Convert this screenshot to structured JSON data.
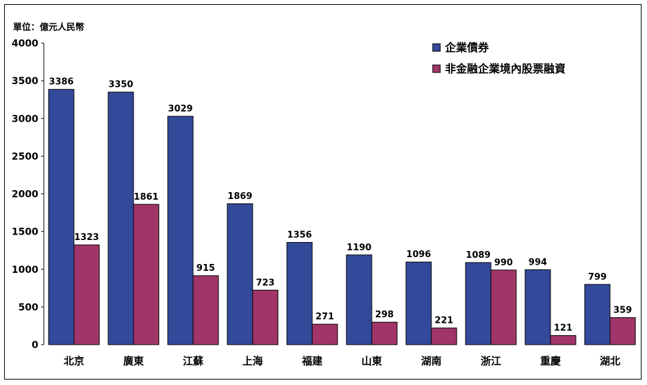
{
  "unit_label": "單位：億元人民幣",
  "chart_data": {
    "type": "bar",
    "categories": [
      "北京",
      "廣東",
      "江蘇",
      "上海",
      "福建",
      "山東",
      "湖南",
      "浙江",
      "重慶",
      "湖北"
    ],
    "series": [
      {
        "name": "企業債券",
        "color": "#334A9B",
        "values": [
          3386,
          3350,
          3029,
          1869,
          1356,
          1190,
          1096,
          1089,
          994,
          799
        ]
      },
      {
        "name": "非金融企業境內股票融資",
        "color": "#A13569",
        "values": [
          1323,
          1861,
          915,
          723,
          271,
          298,
          221,
          990,
          121,
          359
        ]
      }
    ],
    "ylim": [
      0,
      4000
    ],
    "yticks": [
      0,
      500,
      1000,
      1500,
      2000,
      2500,
      3000,
      3500,
      4000
    ],
    "grid": false,
    "legend_position": "top-right",
    "data_labels": true
  }
}
